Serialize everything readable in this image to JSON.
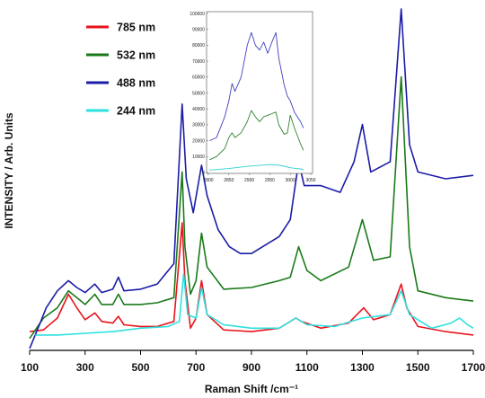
{
  "chart_data": [
    {
      "type": "line",
      "title": "",
      "xlabel": "Raman Shift /cm⁻¹",
      "ylabel": "INTENSITY / Arb. Units",
      "xlim": [
        100,
        1700
      ],
      "xticks": [
        "100",
        "300",
        "500",
        "700",
        "900",
        "1100",
        "1300",
        "1500",
        "1700"
      ],
      "y_tick_labels_shown": false,
      "grid": false,
      "legend_position": "top-left",
      "series": [
        {
          "name": "785 nm",
          "color": "#e8141c",
          "points": [
            [
              100,
              0.05
            ],
            [
              150,
              0.055
            ],
            [
              200,
              0.09
            ],
            [
              240,
              0.16
            ],
            [
              270,
              0.12
            ],
            [
              300,
              0.085
            ],
            [
              335,
              0.105
            ],
            [
              360,
              0.08
            ],
            [
              400,
              0.075
            ],
            [
              420,
              0.095
            ],
            [
              440,
              0.07
            ],
            [
              500,
              0.065
            ],
            [
              560,
              0.065
            ],
            [
              620,
              0.08
            ],
            [
              650,
              0.37
            ],
            [
              660,
              0.2
            ],
            [
              680,
              0.06
            ],
            [
              700,
              0.09
            ],
            [
              720,
              0.2
            ],
            [
              740,
              0.1
            ],
            [
              800,
              0.055
            ],
            [
              900,
              0.05
            ],
            [
              1000,
              0.06
            ],
            [
              1060,
              0.09
            ],
            [
              1080,
              0.08
            ],
            [
              1150,
              0.06
            ],
            [
              1250,
              0.075
            ],
            [
              1305,
              0.12
            ],
            [
              1340,
              0.085
            ],
            [
              1400,
              0.1
            ],
            [
              1440,
              0.19
            ],
            [
              1460,
              0.12
            ],
            [
              1500,
              0.065
            ],
            [
              1600,
              0.05
            ],
            [
              1700,
              0.04
            ]
          ]
        },
        {
          "name": "532 nm",
          "color": "#1a7a1a",
          "points": [
            [
              100,
              0.03
            ],
            [
              150,
              0.09
            ],
            [
              200,
              0.12
            ],
            [
              240,
              0.17
            ],
            [
              270,
              0.15
            ],
            [
              300,
              0.13
            ],
            [
              335,
              0.16
            ],
            [
              360,
              0.13
            ],
            [
              400,
              0.13
            ],
            [
              420,
              0.16
            ],
            [
              440,
              0.13
            ],
            [
              500,
              0.13
            ],
            [
              560,
              0.135
            ],
            [
              620,
              0.15
            ],
            [
              650,
              0.52
            ],
            [
              660,
              0.3
            ],
            [
              680,
              0.16
            ],
            [
              700,
              0.2
            ],
            [
              720,
              0.34
            ],
            [
              740,
              0.24
            ],
            [
              800,
              0.175
            ],
            [
              900,
              0.18
            ],
            [
              1000,
              0.2
            ],
            [
              1040,
              0.21
            ],
            [
              1070,
              0.3
            ],
            [
              1100,
              0.23
            ],
            [
              1150,
              0.2
            ],
            [
              1250,
              0.24
            ],
            [
              1300,
              0.38
            ],
            [
              1340,
              0.26
            ],
            [
              1400,
              0.27
            ],
            [
              1440,
              0.8
            ],
            [
              1470,
              0.3
            ],
            [
              1500,
              0.17
            ],
            [
              1600,
              0.15
            ],
            [
              1700,
              0.14
            ]
          ]
        },
        {
          "name": "488 nm",
          "color": "#1c1ca8",
          "points": [
            [
              100,
              0.0
            ],
            [
              140,
              0.08
            ],
            [
              160,
              0.12
            ],
            [
              200,
              0.17
            ],
            [
              240,
              0.2
            ],
            [
              270,
              0.18
            ],
            [
              300,
              0.165
            ],
            [
              335,
              0.19
            ],
            [
              360,
              0.165
            ],
            [
              400,
              0.175
            ],
            [
              420,
              0.21
            ],
            [
              440,
              0.17
            ],
            [
              500,
              0.175
            ],
            [
              560,
              0.19
            ],
            [
              620,
              0.25
            ],
            [
              650,
              0.72
            ],
            [
              665,
              0.5
            ],
            [
              690,
              0.4
            ],
            [
              720,
              0.54
            ],
            [
              740,
              0.45
            ],
            [
              780,
              0.35
            ],
            [
              820,
              0.3
            ],
            [
              860,
              0.28
            ],
            [
              900,
              0.28
            ],
            [
              1000,
              0.33
            ],
            [
              1040,
              0.38
            ],
            [
              1070,
              0.55
            ],
            [
              1090,
              0.48
            ],
            [
              1150,
              0.48
            ],
            [
              1220,
              0.46
            ],
            [
              1270,
              0.55
            ],
            [
              1300,
              0.66
            ],
            [
              1330,
              0.52
            ],
            [
              1400,
              0.55
            ],
            [
              1440,
              1.0
            ],
            [
              1470,
              0.6
            ],
            [
              1500,
              0.52
            ],
            [
              1600,
              0.5
            ],
            [
              1700,
              0.51
            ]
          ]
        },
        {
          "name": "244 nm",
          "color": "#2ee0e0",
          "points": [
            [
              120,
              0.04
            ],
            [
              200,
              0.04
            ],
            [
              300,
              0.045
            ],
            [
              400,
              0.05
            ],
            [
              500,
              0.06
            ],
            [
              600,
              0.065
            ],
            [
              640,
              0.08
            ],
            [
              655,
              0.22
            ],
            [
              670,
              0.1
            ],
            [
              700,
              0.09
            ],
            [
              720,
              0.18
            ],
            [
              740,
              0.1
            ],
            [
              800,
              0.07
            ],
            [
              900,
              0.06
            ],
            [
              1000,
              0.06
            ],
            [
              1060,
              0.09
            ],
            [
              1100,
              0.07
            ],
            [
              1200,
              0.065
            ],
            [
              1300,
              0.09
            ],
            [
              1400,
              0.1
            ],
            [
              1440,
              0.17
            ],
            [
              1470,
              0.1
            ],
            [
              1550,
              0.06
            ],
            [
              1620,
              0.075
            ],
            [
              1650,
              0.09
            ],
            [
              1680,
              0.07
            ],
            [
              1700,
              0.06
            ]
          ]
        }
      ]
    },
    {
      "type": "line",
      "title": "",
      "xlim": [
        2800,
        3050
      ],
      "ylim": [
        0,
        100000
      ],
      "xticks": [
        "2800",
        "2850",
        "2900",
        "2950",
        "3000",
        "3050"
      ],
      "yticks": [
        "0",
        "10000",
        "20000",
        "30000",
        "40000",
        "50000",
        "60000",
        "70000",
        "80000",
        "90000",
        "100000"
      ],
      "grid": false,
      "series": [
        {
          "color": "#4040c0",
          "points": [
            [
              2803,
              20000
            ],
            [
              2820,
              22000
            ],
            [
              2840,
              35000
            ],
            [
              2850,
              45000
            ],
            [
              2858,
              56000
            ],
            [
              2865,
              51000
            ],
            [
              2880,
              60000
            ],
            [
              2895,
              80000
            ],
            [
              2905,
              88000
            ],
            [
              2915,
              80000
            ],
            [
              2925,
              77000
            ],
            [
              2935,
              82000
            ],
            [
              2945,
              75000
            ],
            [
              2955,
              82000
            ],
            [
              2965,
              88000
            ],
            [
              2972,
              72000
            ],
            [
              2985,
              55000
            ],
            [
              2993,
              48000
            ],
            [
              3000,
              45000
            ],
            [
              3010,
              38000
            ],
            [
              3025,
              32000
            ],
            [
              3032,
              28000
            ]
          ]
        },
        {
          "color": "#308030",
          "points": [
            [
              2803,
              8000
            ],
            [
              2820,
              10000
            ],
            [
              2840,
              15000
            ],
            [
              2850,
              22000
            ],
            [
              2858,
              25000
            ],
            [
              2865,
              22000
            ],
            [
              2880,
              25000
            ],
            [
              2895,
              32000
            ],
            [
              2905,
              39000
            ],
            [
              2915,
              35000
            ],
            [
              2925,
              32000
            ],
            [
              2935,
              35000
            ],
            [
              2945,
              36000
            ],
            [
              2955,
              37000
            ],
            [
              2965,
              38000
            ],
            [
              2972,
              30000
            ],
            [
              2985,
              24000
            ],
            [
              2993,
              25000
            ],
            [
              3000,
              36000
            ],
            [
              3010,
              28000
            ],
            [
              3025,
              18000
            ],
            [
              3032,
              14000
            ]
          ]
        },
        {
          "color": "#30d0d0",
          "points": [
            [
              2803,
              1500
            ],
            [
              2850,
              2500
            ],
            [
              2900,
              4000
            ],
            [
              2950,
              5000
            ],
            [
              2975,
              4500
            ],
            [
              3000,
              3000
            ],
            [
              3032,
              2000
            ]
          ]
        }
      ]
    }
  ]
}
